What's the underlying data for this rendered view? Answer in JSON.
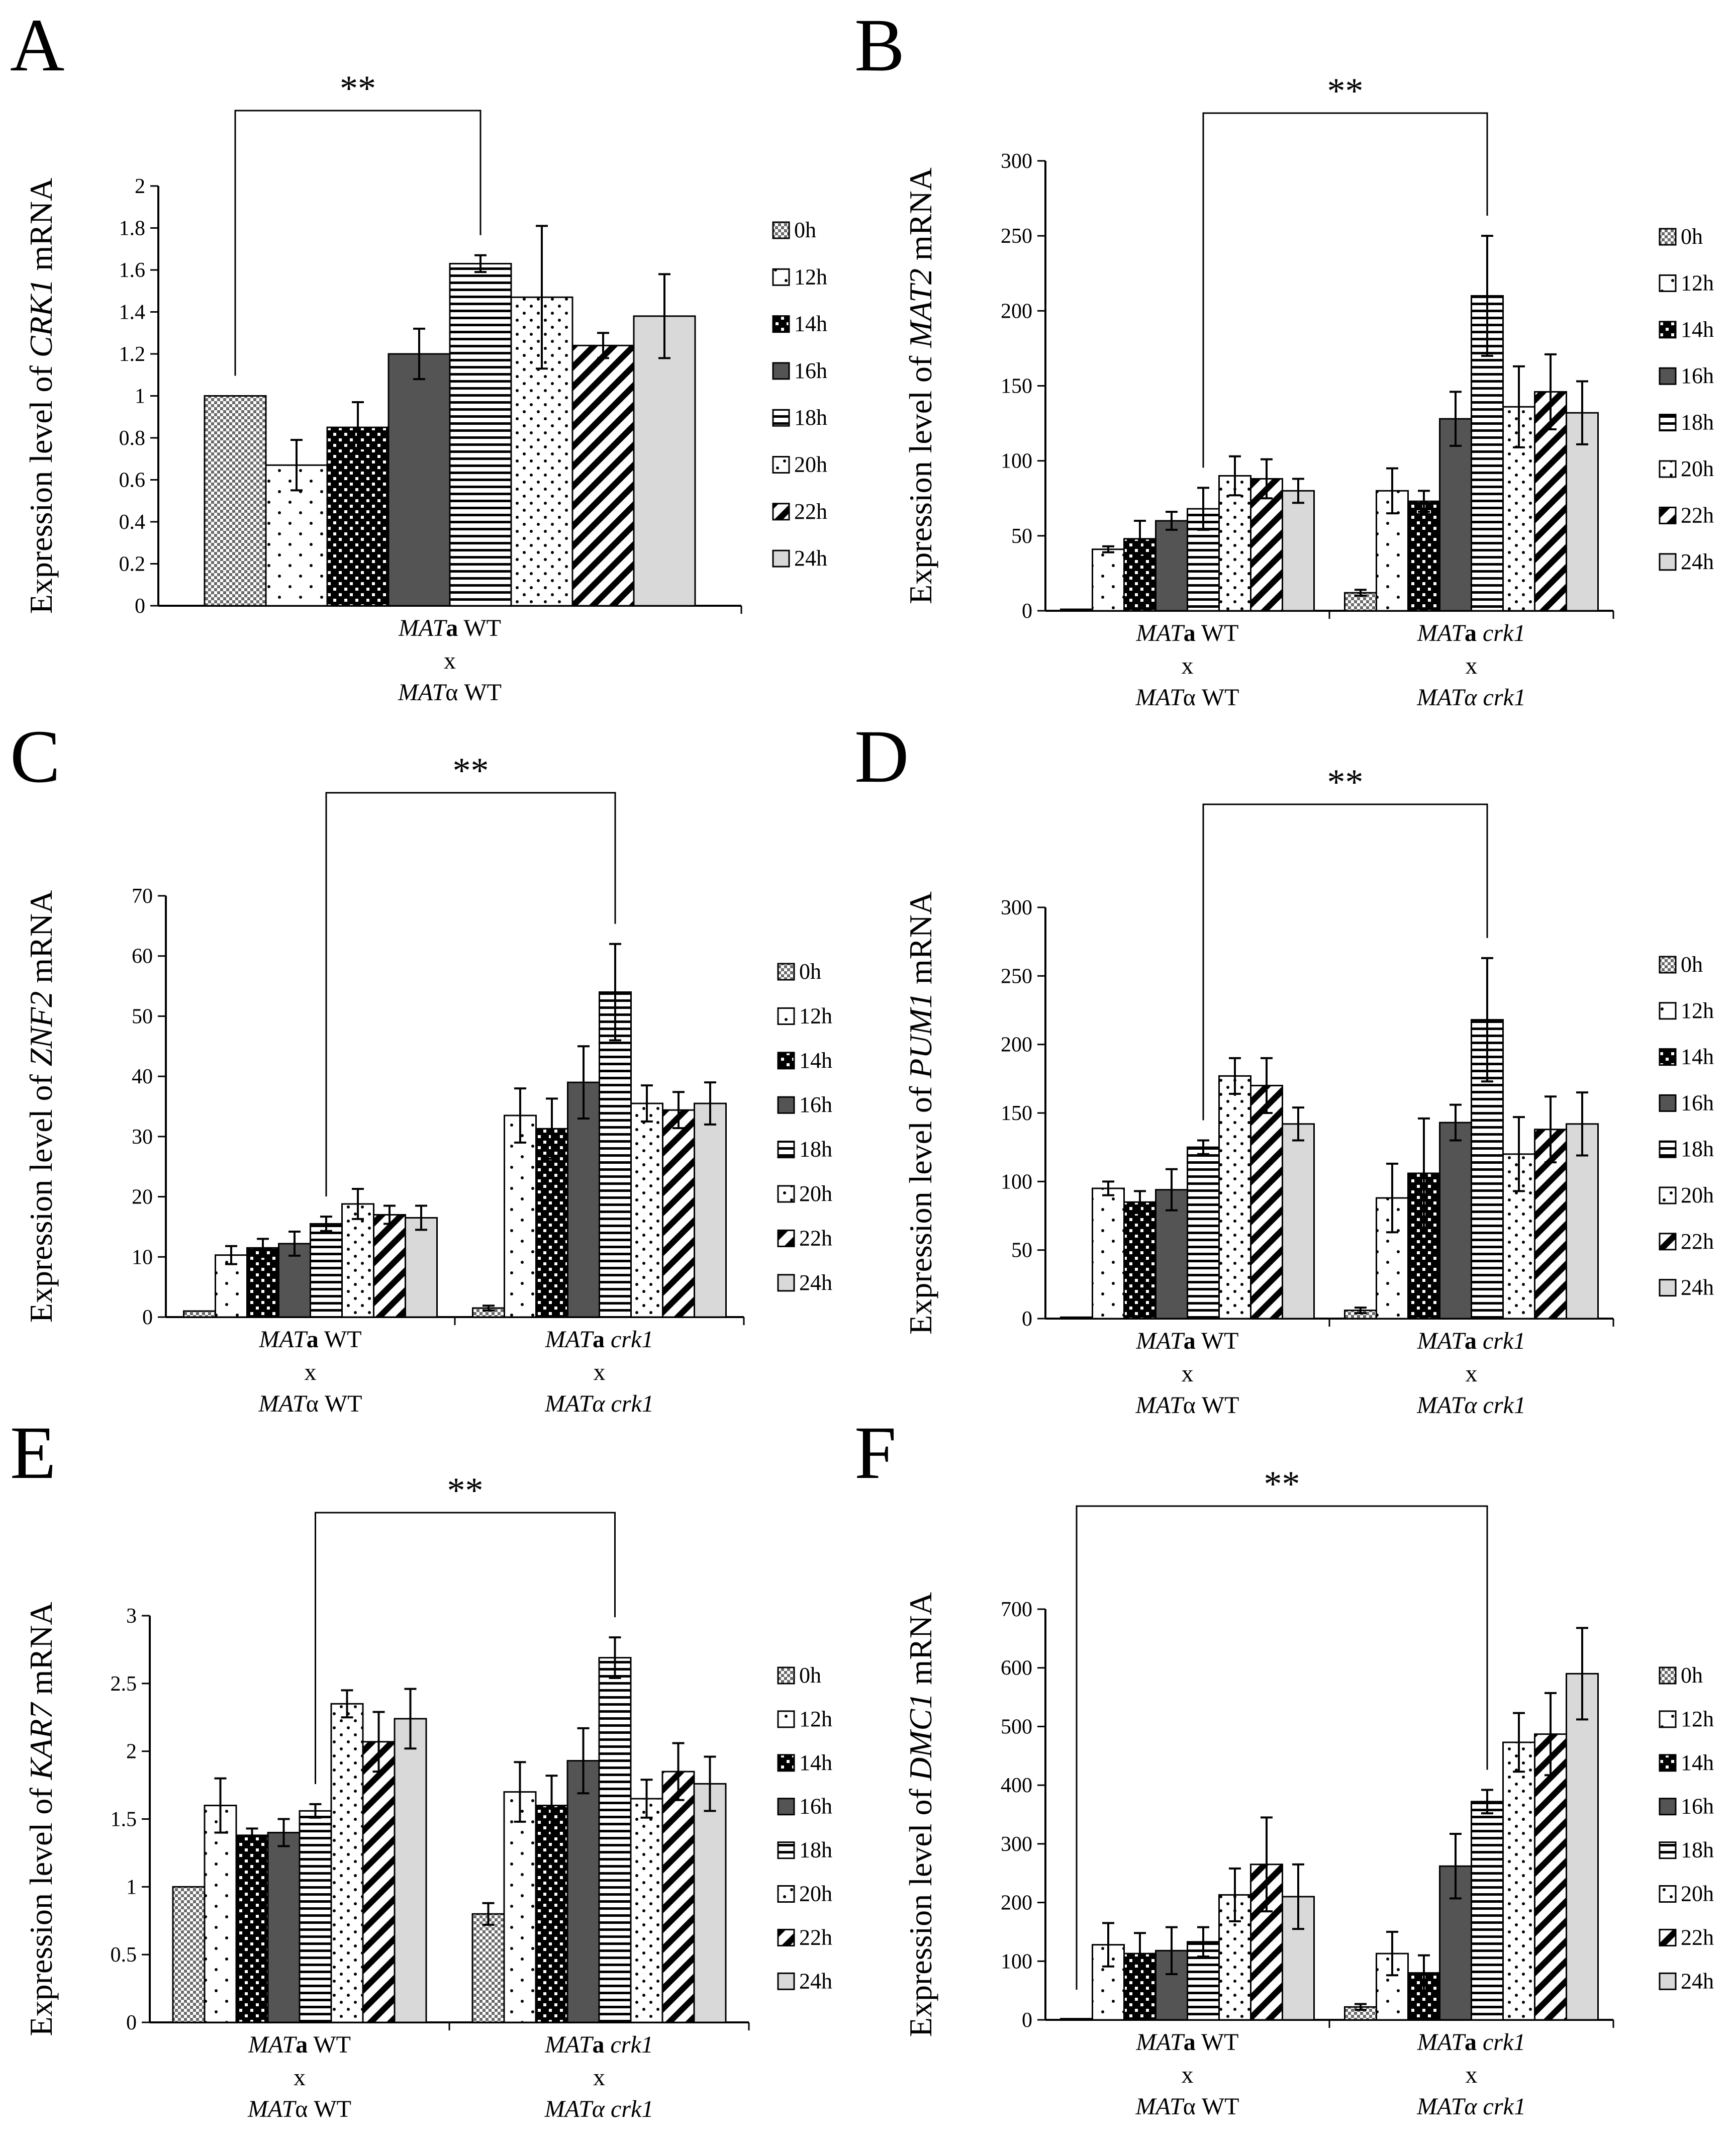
{
  "figure": {
    "panel_count": 6
  },
  "legend_labels": [
    "0h",
    "12h",
    "14h",
    "16h",
    "18h",
    "20h",
    "22h",
    "24h"
  ],
  "significance": "**",
  "chart_data": [
    {
      "panel": "A",
      "type": "bar",
      "ylabel_parts": [
        "Expression level of ",
        "CRK1",
        " mRNA"
      ],
      "ylim": [
        0,
        2
      ],
      "yticks": [
        "0",
        "0.2",
        "0.4",
        "0.6",
        "0.8",
        "1",
        "1.2",
        "1.4",
        "1.6",
        "1.8",
        "2"
      ],
      "groups": [
        {
          "line1": [
            "MAT",
            "a",
            " WT"
          ],
          "line2": "x",
          "line3": [
            "MAT",
            "α WT"
          ],
          "values": [
            1.0,
            0.67,
            0.85,
            1.2,
            1.63,
            1.47,
            1.24,
            1.38
          ],
          "errors": [
            0,
            0.12,
            0.12,
            0.12,
            0.04,
            0.34,
            0.06,
            0.2
          ]
        }
      ],
      "bracket": {
        "from": [
          0,
          0
        ],
        "to": [
          0,
          4
        ]
      }
    },
    {
      "panel": "B",
      "type": "bar",
      "ylabel_parts": [
        "Expression level of ",
        "MAT2",
        " mRNA"
      ],
      "ylim": [
        0,
        300
      ],
      "yticks": [
        "0",
        "50",
        "100",
        "150",
        "200",
        "250",
        "300"
      ],
      "groups": [
        {
          "line1": [
            "MAT",
            "a",
            " WT"
          ],
          "line2": "x",
          "line3": [
            "MAT",
            "α WT"
          ],
          "values": [
            1,
            41,
            48,
            60,
            68,
            90,
            88,
            80
          ],
          "errors": [
            0,
            2,
            12,
            6,
            14,
            13,
            13,
            8
          ]
        },
        {
          "line1": [
            "MAT",
            "a",
            " crk1"
          ],
          "line2": "x",
          "line3": [
            "MAT",
            "α crk1"
          ],
          "values": [
            12,
            80,
            73,
            128,
            210,
            136,
            146,
            132
          ],
          "errors": [
            2,
            15,
            7,
            18,
            40,
            27,
            25,
            21
          ]
        }
      ],
      "bracket": {
        "from": [
          0,
          4
        ],
        "to": [
          1,
          4
        ]
      }
    },
    {
      "panel": "C",
      "type": "bar",
      "ylabel_parts": [
        "Expression level of ",
        "ZNF2",
        " mRNA"
      ],
      "ylim": [
        0,
        70
      ],
      "yticks": [
        "0",
        "10",
        "20",
        "30",
        "40",
        "50",
        "60",
        "70"
      ],
      "groups": [
        {
          "line1": [
            "MAT",
            "a",
            " WT"
          ],
          "line2": "x",
          "line3": [
            "MAT",
            "α WT"
          ],
          "values": [
            1,
            10.3,
            11.5,
            12.2,
            15.5,
            18.8,
            17.0,
            16.5
          ],
          "errors": [
            0,
            1.5,
            1.5,
            2,
            1.2,
            2.5,
            1.5,
            2
          ]
        },
        {
          "line1": [
            "MAT",
            "a",
            " crk1"
          ],
          "line2": "x",
          "line3": [
            "MAT",
            "α crk1"
          ],
          "values": [
            1.5,
            33.5,
            31.3,
            39.0,
            54.0,
            35.5,
            34.4,
            35.5
          ],
          "errors": [
            0.4,
            4.5,
            5,
            6,
            8,
            3,
            3,
            3.5
          ]
        }
      ],
      "bracket": {
        "from": [
          0,
          4
        ],
        "to": [
          1,
          4
        ]
      }
    },
    {
      "panel": "D",
      "type": "bar",
      "ylabel_parts": [
        "Expression level of ",
        "PUM1",
        " mRNA"
      ],
      "ylim": [
        0,
        300
      ],
      "yticks": [
        "0",
        "50",
        "100",
        "150",
        "200",
        "250",
        "300"
      ],
      "groups": [
        {
          "line1": [
            "MAT",
            "a",
            " WT"
          ],
          "line2": "x",
          "line3": [
            "MAT",
            "α WT"
          ],
          "values": [
            1,
            95,
            85,
            94,
            125,
            177,
            170,
            142
          ],
          "errors": [
            0,
            5,
            8,
            15,
            5,
            13,
            20,
            12
          ]
        },
        {
          "line1": [
            "MAT",
            "a",
            " crk1"
          ],
          "line2": "x",
          "line3": [
            "MAT",
            "α crk1"
          ],
          "values": [
            6,
            88,
            106,
            143,
            218,
            120,
            138,
            142
          ],
          "errors": [
            2,
            25,
            40,
            13,
            45,
            27,
            24,
            23
          ]
        }
      ],
      "bracket": {
        "from": [
          0,
          4
        ],
        "to": [
          1,
          4
        ]
      }
    },
    {
      "panel": "E",
      "type": "bar",
      "ylabel_parts": [
        "Expression level of ",
        "KAR7",
        " mRNA"
      ],
      "ylim": [
        0,
        3
      ],
      "yticks": [
        "0",
        "0.5",
        "1",
        "1.5",
        "2",
        "2.5",
        "3"
      ],
      "groups": [
        {
          "line1": [
            "MAT",
            "a",
            " WT"
          ],
          "line2": "x",
          "line3": [
            "MAT",
            "α WT"
          ],
          "values": [
            1.0,
            1.6,
            1.38,
            1.4,
            1.56,
            2.35,
            2.07,
            2.24
          ],
          "errors": [
            0,
            0.2,
            0.05,
            0.1,
            0.05,
            0.1,
            0.22,
            0.22
          ]
        },
        {
          "line1": [
            "MAT",
            "a",
            " crk1"
          ],
          "line2": "x",
          "line3": [
            "MAT",
            "α crk1"
          ],
          "values": [
            0.8,
            1.7,
            1.6,
            1.93,
            2.69,
            1.65,
            1.85,
            1.76
          ],
          "errors": [
            0.08,
            0.22,
            0.22,
            0.24,
            0.15,
            0.14,
            0.21,
            0.2
          ]
        }
      ],
      "bracket": {
        "from": [
          0,
          4
        ],
        "to": [
          1,
          4
        ]
      }
    },
    {
      "panel": "F",
      "type": "bar",
      "ylabel_parts": [
        "Expression level of ",
        "DMC1",
        " mRNA"
      ],
      "ylim": [
        0,
        700
      ],
      "yticks": [
        "0",
        "100",
        "200",
        "300",
        "400",
        "500",
        "600",
        "700"
      ],
      "groups": [
        {
          "line1": [
            "MAT",
            "a",
            " WT"
          ],
          "line2": "x",
          "line3": [
            "MAT",
            "α WT"
          ],
          "values": [
            2,
            128,
            113,
            118,
            133,
            213,
            265,
            210
          ],
          "errors": [
            0,
            37,
            35,
            40,
            25,
            45,
            80,
            55
          ]
        },
        {
          "line1": [
            "MAT",
            "a",
            " crk1"
          ],
          "line2": "x",
          "line3": [
            "MAT",
            "α crk1"
          ],
          "values": [
            22,
            113,
            80,
            262,
            372,
            473,
            487,
            590
          ],
          "errors": [
            5,
            37,
            30,
            55,
            20,
            50,
            70,
            78
          ]
        }
      ],
      "bracket": {
        "from": [
          0,
          0
        ],
        "to": [
          1,
          4
        ]
      }
    }
  ]
}
